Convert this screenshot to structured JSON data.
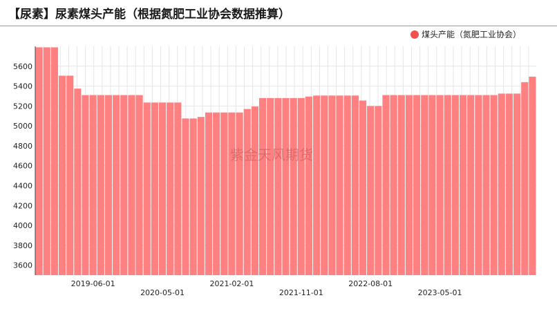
{
  "title": "【尿素】尿素煤头产能（根据氮肥工业协会数据推算）",
  "watermark": "紫金天风期货",
  "colors": {
    "bar": "#ff8080",
    "legend_dot": "#f05050",
    "grid": "#e6e6e6",
    "axis": "#444444"
  },
  "chart_data": {
    "type": "bar",
    "series": [
      {
        "name": "煤头产能（氮肥工业协会）",
        "values": [
          5790,
          5790,
          5790,
          5505,
          5505,
          5375,
          5310,
          5310,
          5310,
          5310,
          5310,
          5310,
          5310,
          5310,
          5235,
          5235,
          5235,
          5235,
          5235,
          5075,
          5075,
          5090,
          5135,
          5135,
          5135,
          5135,
          5135,
          5170,
          5195,
          5280,
          5280,
          5280,
          5280,
          5280,
          5280,
          5295,
          5305,
          5305,
          5305,
          5305,
          5305,
          5305,
          5255,
          5200,
          5200,
          5310,
          5310,
          5310,
          5310,
          5310,
          5310,
          5310,
          5310,
          5310,
          5310,
          5310,
          5310,
          5310,
          5310,
          5310,
          5325,
          5325,
          5325,
          5440,
          5495
        ]
      }
    ],
    "x_tick_labels": [
      "2019-06-01",
      "2020-05-01",
      "2021-02-01",
      "2021-11-01",
      "2022-08-01",
      "2023-05-01"
    ],
    "ylim": [
      3500,
      5800
    ],
    "y_ticks": [
      3600,
      3800,
      4000,
      4200,
      4400,
      4600,
      4800,
      5000,
      5200,
      5400,
      5600
    ],
    "legend_position": "top-right",
    "grid": true
  }
}
